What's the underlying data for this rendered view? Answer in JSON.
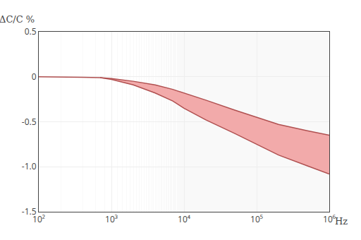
{
  "chart_data": {
    "type": "band",
    "log": "x",
    "grid": true,
    "xlabel": "Hz",
    "ylabel": "ΔC/C %",
    "xlim": [
      100,
      1000000
    ],
    "ylim": [
      -1.5,
      0.5
    ],
    "xticks": [
      {
        "value": 100,
        "label": "10²"
      },
      {
        "value": 1000,
        "label": "10³"
      },
      {
        "value": 10000,
        "label": "10⁴"
      },
      {
        "value": 100000,
        "label": "10⁵"
      },
      {
        "value": 1000000,
        "label": "10⁶"
      }
    ],
    "yticks": [
      0.5,
      0,
      -0.5,
      {
        "value": -1.0,
        "label": "-1.0"
      },
      -1.5
    ],
    "fill_color": "#f2aaaa",
    "series": [
      {
        "color": "#b05050",
        "x": [
          100,
          200,
          400,
          700,
          1000,
          2000,
          4000,
          7000,
          10000,
          20000,
          50000,
          100000,
          200000,
          500000,
          1000000
        ],
        "values": [
          0.0,
          0.0,
          -0.005,
          -0.01,
          -0.02,
          -0.05,
          -0.09,
          -0.14,
          -0.18,
          -0.26,
          -0.37,
          -0.45,
          -0.53,
          -0.6,
          -0.65
        ]
      },
      {
        "color": "#b05050",
        "x": [
          700,
          1000,
          2000,
          4000,
          7000,
          10000,
          20000,
          50000,
          100000,
          200000,
          500000,
          1000000
        ],
        "values": [
          -0.01,
          -0.03,
          -0.09,
          -0.18,
          -0.27,
          -0.35,
          -0.48,
          -0.63,
          -0.75,
          -0.87,
          -0.99,
          -1.08
        ]
      }
    ]
  }
}
